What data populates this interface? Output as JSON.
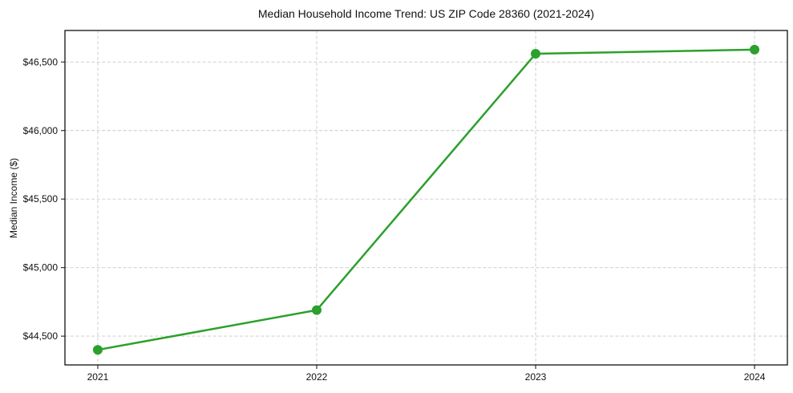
{
  "chart_data": {
    "type": "line",
    "title": "Median Household Income Trend: US ZIP Code 28360 (2021-2024)",
    "xlabel": "",
    "ylabel": "Median Income ($)",
    "x": [
      2021,
      2022,
      2023,
      2024
    ],
    "values": [
      44400,
      44690,
      46560,
      46590
    ],
    "xticks": [
      2021,
      2022,
      2023,
      2024
    ],
    "xtick_labels": [
      "2021",
      "2022",
      "2023",
      "2024"
    ],
    "yticks": [
      44500,
      45000,
      45500,
      46000,
      46500
    ],
    "ytick_labels": [
      "$44,500",
      "$45,000",
      "$45,500",
      "$46,000",
      "$46,500"
    ],
    "xlim": [
      2020.85,
      2024.15
    ],
    "ylim": [
      44290,
      46730
    ],
    "line_color": "#2ca02c",
    "marker": "circle",
    "marker_radius": 6,
    "line_width": 2.5,
    "grid": true,
    "grid_style": "dashed",
    "grid_color": "#c9c9c9",
    "background_color": "#ffffff",
    "legend": "none"
  }
}
